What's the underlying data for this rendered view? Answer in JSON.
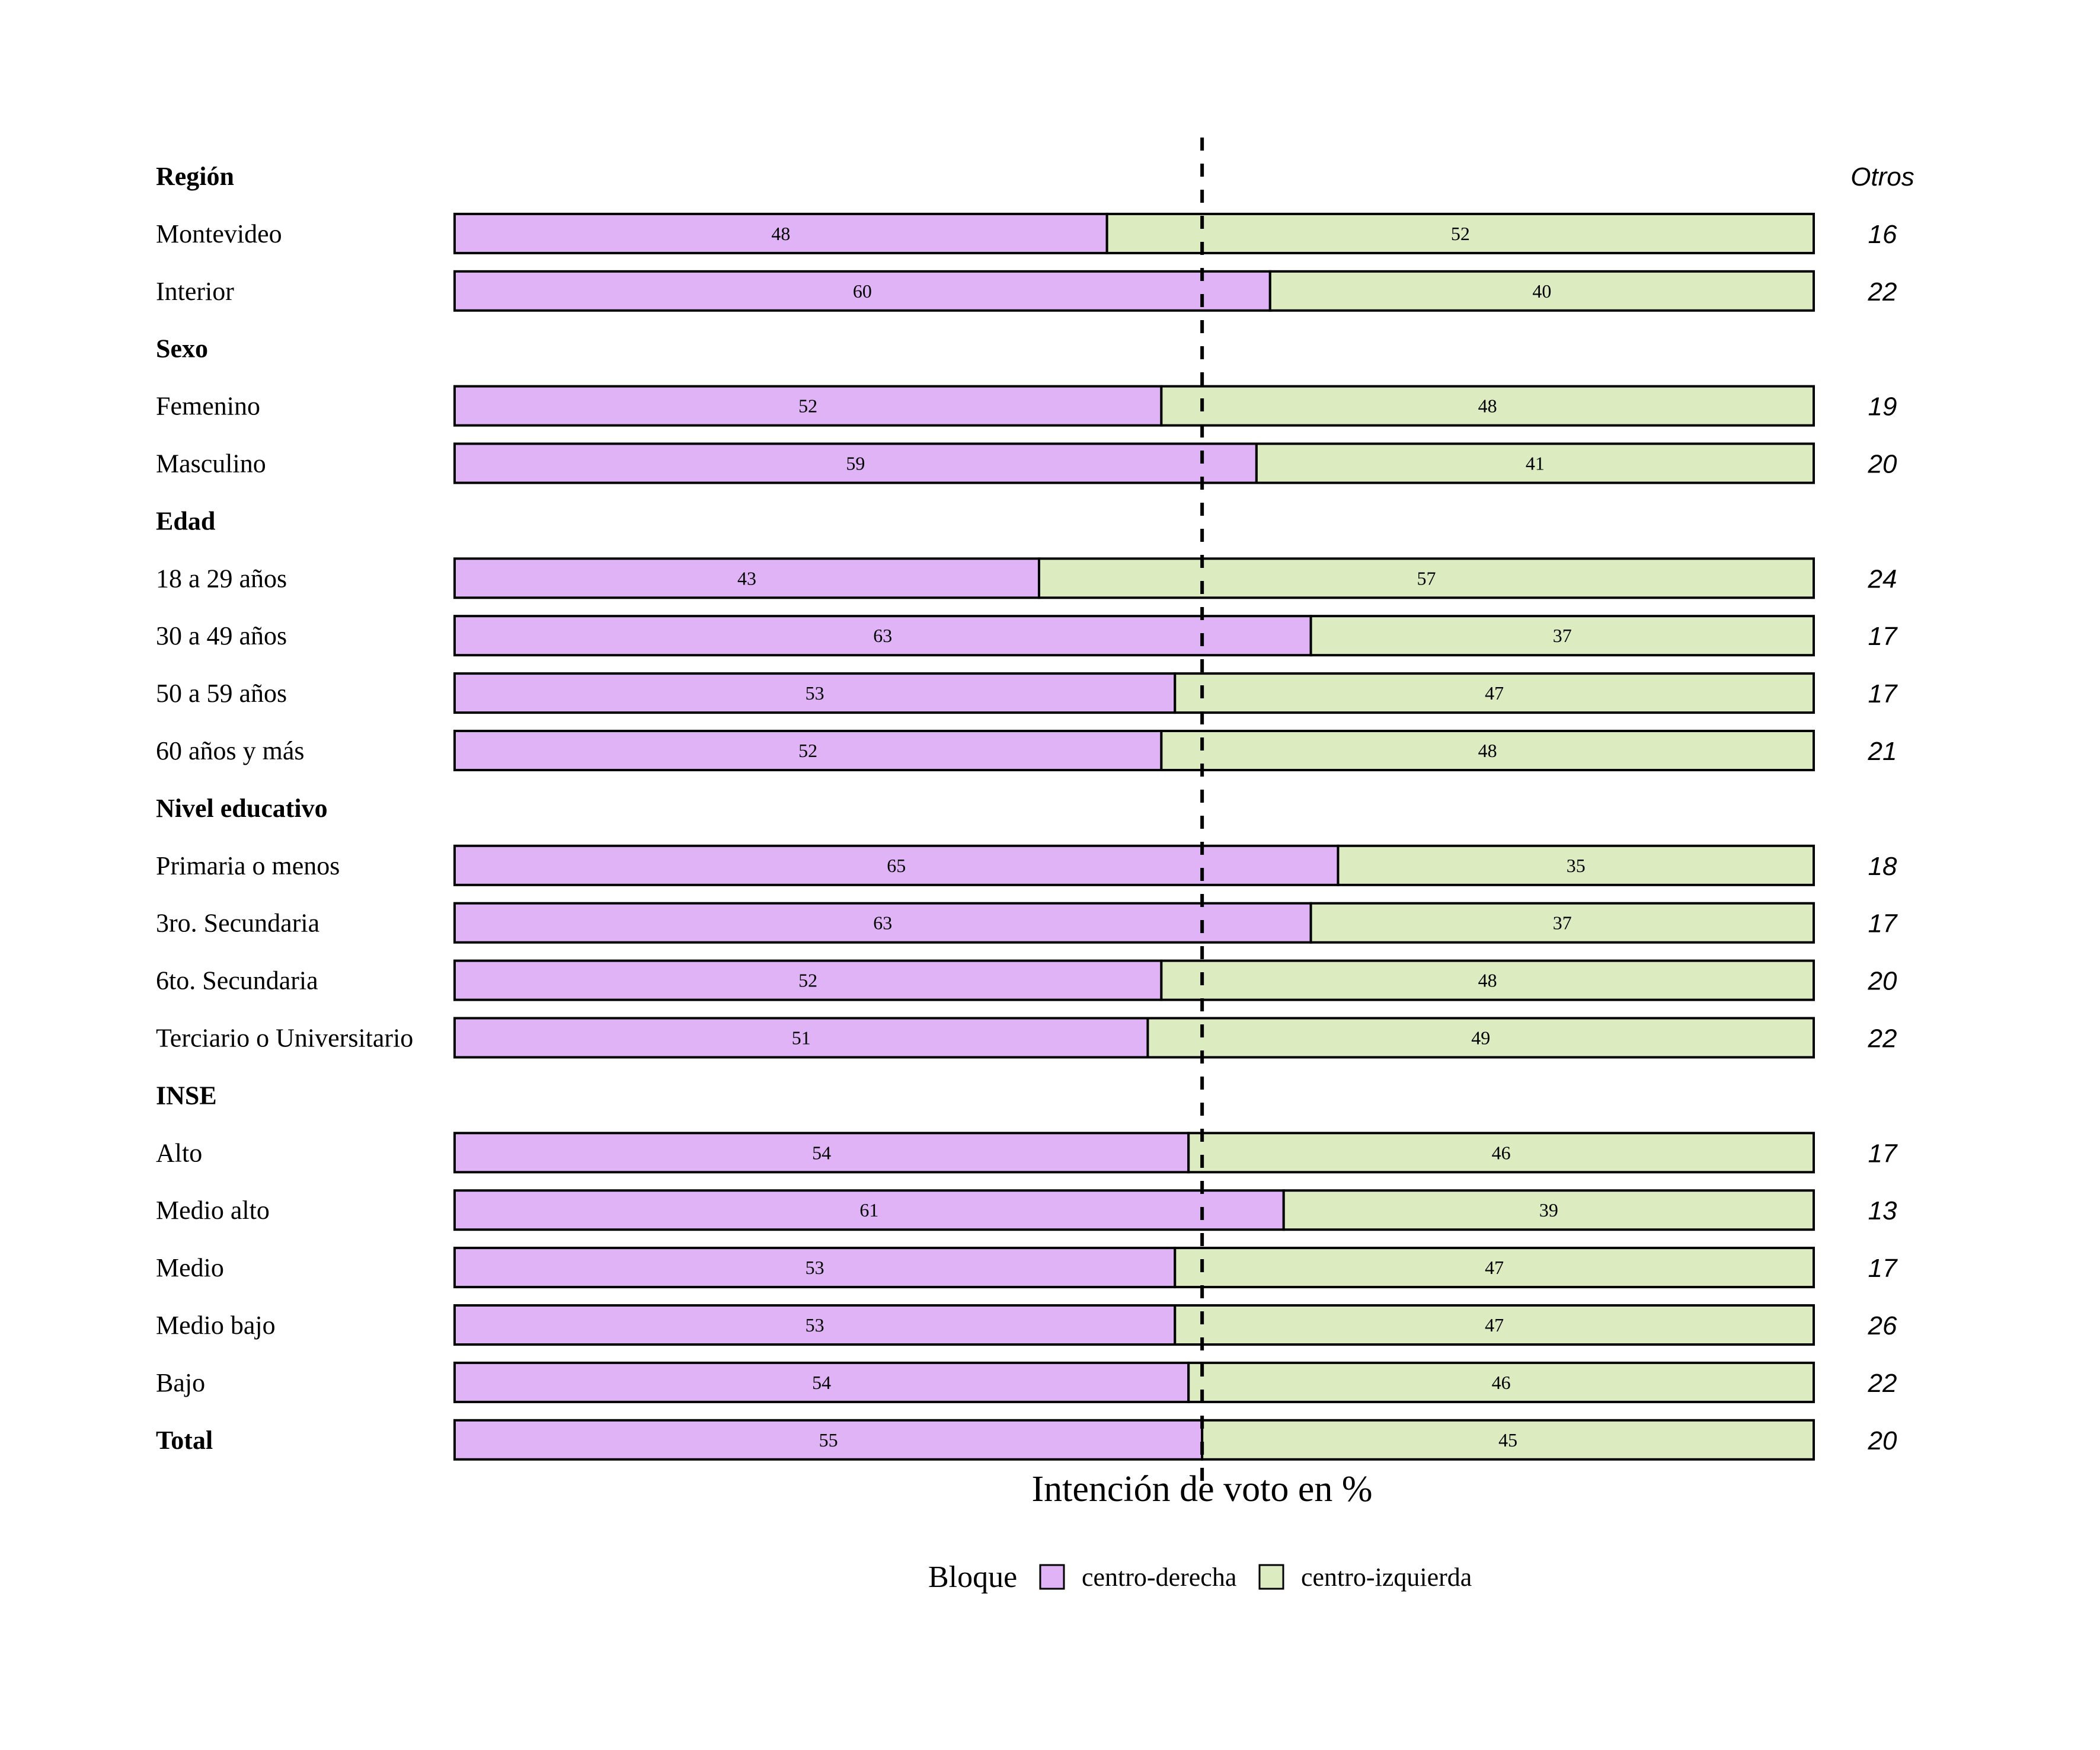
{
  "chart_data": {
    "type": "bar",
    "orientation": "horizontal",
    "stacked": true,
    "xlabel": "Intención de voto en %",
    "xlim": [
      0,
      100
    ],
    "reference_line": 55,
    "otros_header": "Otros",
    "legend": {
      "title": "Bloque",
      "position": "bottom",
      "items": [
        "centro-derecha",
        "centro-izquierda"
      ]
    },
    "colors": {
      "centro-derecha": "#e0b3f7",
      "centro-izquierda": "#dcebc0",
      "border": "#000000"
    },
    "rows": [
      {
        "label": "Región",
        "header": true
      },
      {
        "label": "Montevideo",
        "cd": 48,
        "ci": 52,
        "otros": "16"
      },
      {
        "label": "Interior",
        "cd": 60,
        "ci": 40,
        "otros": "22"
      },
      {
        "label": "Sexo",
        "header": true
      },
      {
        "label": "Femenino",
        "cd": 52,
        "ci": 48,
        "otros": "19"
      },
      {
        "label": "Masculino",
        "cd": 59,
        "ci": 41,
        "otros": "20"
      },
      {
        "label": "Edad",
        "header": true
      },
      {
        "label": "18 a 29 años",
        "cd": 43,
        "ci": 57,
        "otros": "24"
      },
      {
        "label": "30 a 49 años",
        "cd": 63,
        "ci": 37,
        "otros": "17"
      },
      {
        "label": "50 a 59 años",
        "cd": 53,
        "ci": 47,
        "otros": "17"
      },
      {
        "label": "60 años y más",
        "cd": 52,
        "ci": 48,
        "otros": "21"
      },
      {
        "label": "Nivel educativo",
        "header": true
      },
      {
        "label": "Primaria o menos",
        "cd": 65,
        "ci": 35,
        "otros": "18"
      },
      {
        "label": "3ro. Secundaria",
        "cd": 63,
        "ci": 37,
        "otros": "17"
      },
      {
        "label": "6to. Secundaria",
        "cd": 52,
        "ci": 48,
        "otros": "20"
      },
      {
        "label": "Terciario o Universitario",
        "cd": 51,
        "ci": 49,
        "otros": "22"
      },
      {
        "label": "INSE",
        "header": true
      },
      {
        "label": "Alto",
        "cd": 54,
        "ci": 46,
        "otros": "17"
      },
      {
        "label": "Medio alto",
        "cd": 61,
        "ci": 39,
        "otros": "13"
      },
      {
        "label": "Medio",
        "cd": 53,
        "ci": 47,
        "otros": "17"
      },
      {
        "label": "Medio bajo",
        "cd": 53,
        "ci": 47,
        "otros": "26"
      },
      {
        "label": "Bajo",
        "cd": 54,
        "ci": 46,
        "otros": "22"
      },
      {
        "label": "Total",
        "cd": 55,
        "ci": 45,
        "otros": "20",
        "bold": true
      }
    ]
  }
}
